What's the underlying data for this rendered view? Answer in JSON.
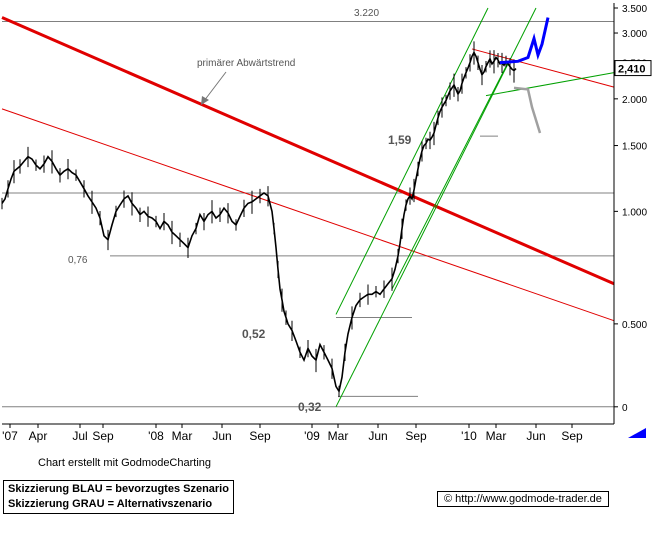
{
  "chart_data": {
    "type": "candlestick-line",
    "y_scale": "log",
    "ylim": [
      0.28,
      3.5
    ],
    "y_ticks": [
      {
        "label": "3.500",
        "value": 3.5
      },
      {
        "label": "3.000",
        "value": 3.0
      },
      {
        "label": "2.500",
        "value": 2.5
      },
      {
        "label": "2.000",
        "value": 2.0
      },
      {
        "label": "1.500",
        "value": 1.5
      },
      {
        "label": "1.000",
        "value": 1.0
      },
      {
        "label": "0.500",
        "value": 0.5
      },
      {
        "label": "0",
        "value": 0.3
      }
    ],
    "x_ticks": [
      "'07",
      "Apr",
      "Jul",
      "Sep",
      "'08",
      "Mar",
      "Jun",
      "Sep",
      "'09",
      "Mar",
      "Jun",
      "Sep",
      "'10",
      "Mar",
      "Jun",
      "Sep"
    ],
    "last_price_label": "2,410",
    "last_price": 2.41,
    "series": [
      {
        "points": [
          [
            0,
            1.05
          ],
          [
            3,
            1.08
          ],
          [
            6,
            1.15
          ],
          [
            9,
            1.22
          ],
          [
            12,
            1.28
          ],
          [
            15,
            1.3
          ],
          [
            18,
            1.32
          ],
          [
            22,
            1.36
          ],
          [
            26,
            1.4
          ],
          [
            30,
            1.38
          ],
          [
            34,
            1.33
          ],
          [
            38,
            1.3
          ],
          [
            42,
            1.34
          ],
          [
            46,
            1.4
          ],
          [
            50,
            1.36
          ],
          [
            54,
            1.3
          ],
          [
            58,
            1.25
          ],
          [
            62,
            1.28
          ],
          [
            66,
            1.3
          ],
          [
            70,
            1.27
          ],
          [
            74,
            1.25
          ],
          [
            78,
            1.2
          ],
          [
            82,
            1.15
          ],
          [
            86,
            1.1
          ],
          [
            90,
            1.06
          ],
          [
            94,
            1.02
          ],
          [
            98,
            0.96
          ],
          [
            102,
            0.86
          ],
          [
            106,
            0.84
          ],
          [
            110,
            0.92
          ],
          [
            114,
            1.0
          ],
          [
            118,
            1.04
          ],
          [
            122,
            1.08
          ],
          [
            126,
            1.1
          ],
          [
            130,
            1.05
          ],
          [
            134,
            1.02
          ],
          [
            138,
            0.98
          ],
          [
            142,
            1.0
          ],
          [
            146,
            0.97
          ],
          [
            150,
            0.96
          ],
          [
            154,
            0.94
          ],
          [
            158,
            0.9
          ],
          [
            162,
            0.94
          ],
          [
            166,
            0.92
          ],
          [
            170,
            0.88
          ],
          [
            174,
            0.86
          ],
          [
            178,
            0.84
          ],
          [
            182,
            0.82
          ],
          [
            186,
            0.8
          ],
          [
            190,
            0.86
          ],
          [
            194,
            0.9
          ],
          [
            198,
            0.98
          ],
          [
            202,
            0.94
          ],
          [
            206,
            0.98
          ],
          [
            210,
            1.0
          ],
          [
            214,
            0.96
          ],
          [
            218,
            0.98
          ],
          [
            222,
            1.02
          ],
          [
            226,
            0.99
          ],
          [
            230,
            0.94
          ],
          [
            234,
            0.92
          ],
          [
            238,
            0.97
          ],
          [
            242,
            1.02
          ],
          [
            246,
            1.05
          ],
          [
            250,
            1.06
          ],
          [
            254,
            1.08
          ],
          [
            258,
            1.1
          ],
          [
            262,
            1.12
          ],
          [
            266,
            1.1
          ],
          [
            270,
            1.0
          ],
          [
            272,
            0.9
          ],
          [
            274,
            0.8
          ],
          [
            276,
            0.7
          ],
          [
            278,
            0.62
          ],
          [
            280,
            0.58
          ],
          [
            282,
            0.54
          ],
          [
            284,
            0.52
          ],
          [
            286,
            0.5
          ],
          [
            290,
            0.48
          ],
          [
            294,
            0.45
          ],
          [
            298,
            0.42
          ],
          [
            302,
            0.4
          ],
          [
            306,
            0.43
          ],
          [
            310,
            0.41
          ],
          [
            314,
            0.4
          ],
          [
            318,
            0.44
          ],
          [
            322,
            0.42
          ],
          [
            326,
            0.4
          ],
          [
            330,
            0.38
          ],
          [
            334,
            0.34
          ],
          [
            337,
            0.33
          ],
          [
            340,
            0.36
          ],
          [
            343,
            0.42
          ],
          [
            346,
            0.47
          ],
          [
            350,
            0.52
          ],
          [
            354,
            0.56
          ],
          [
            358,
            0.58
          ],
          [
            362,
            0.59
          ],
          [
            366,
            0.6
          ],
          [
            370,
            0.6
          ],
          [
            374,
            0.61
          ],
          [
            378,
            0.6
          ],
          [
            382,
            0.62
          ],
          [
            386,
            0.64
          ],
          [
            390,
            0.66
          ],
          [
            393,
            0.7
          ],
          [
            396,
            0.76
          ],
          [
            398,
            0.82
          ],
          [
            400,
            0.9
          ],
          [
            402,
            0.98
          ],
          [
            404,
            1.04
          ],
          [
            406,
            1.08
          ],
          [
            408,
            1.1
          ],
          [
            410,
            1.08
          ],
          [
            412,
            1.14
          ],
          [
            414,
            1.22
          ],
          [
            416,
            1.3
          ],
          [
            418,
            1.38
          ],
          [
            420,
            1.45
          ],
          [
            422,
            1.5
          ],
          [
            424,
            1.52
          ],
          [
            426,
            1.56
          ],
          [
            428,
            1.55
          ],
          [
            430,
            1.58
          ],
          [
            432,
            1.62
          ],
          [
            434,
            1.7
          ],
          [
            436,
            1.78
          ],
          [
            438,
            1.85
          ],
          [
            440,
            1.9
          ],
          [
            442,
            1.94
          ],
          [
            444,
            1.98
          ],
          [
            446,
            2.04
          ],
          [
            448,
            2.1
          ],
          [
            450,
            2.14
          ],
          [
            452,
            2.18
          ],
          [
            454,
            2.12
          ],
          [
            456,
            2.06
          ],
          [
            458,
            2.1
          ],
          [
            460,
            2.2
          ],
          [
            462,
            2.28
          ],
          [
            464,
            2.35
          ],
          [
            466,
            2.42
          ],
          [
            468,
            2.5
          ],
          [
            470,
            2.6
          ],
          [
            472,
            2.66
          ],
          [
            474,
            2.6
          ],
          [
            476,
            2.5
          ],
          [
            478,
            2.4
          ],
          [
            480,
            2.32
          ],
          [
            482,
            2.36
          ],
          [
            484,
            2.44
          ],
          [
            486,
            2.5
          ],
          [
            488,
            2.56
          ],
          [
            490,
            2.48
          ],
          [
            492,
            2.52
          ],
          [
            494,
            2.58
          ],
          [
            496,
            2.54
          ],
          [
            498,
            2.48
          ],
          [
            500,
            2.5
          ],
          [
            502,
            2.46
          ],
          [
            504,
            2.52
          ],
          [
            506,
            2.48
          ],
          [
            508,
            2.44
          ],
          [
            510,
            2.4
          ],
          [
            512,
            2.38
          ],
          [
            514,
            2.41
          ]
        ],
        "color": "#000000"
      }
    ],
    "support_labels": [
      {
        "label": "0,76",
        "value": 0.76
      },
      {
        "label": "0,52",
        "value": 0.52
      },
      {
        "label": "0,32",
        "value": 0.32
      },
      {
        "label": "1,59",
        "value": 1.59
      },
      {
        "label": "3.220",
        "value": 3.22
      }
    ],
    "annotations": [
      {
        "text": "primärer Abwärtstrend"
      }
    ],
    "colors": {
      "price": "#000000",
      "main_trend": "#e00000",
      "channel": "#00a000",
      "blue_scenario": "#0000ff",
      "gray_scenario": "#a0a0a0",
      "support": "#808080",
      "grid": "#000000"
    },
    "credit": "Chart erstellt mit GodmodeCharting",
    "legend": [
      "Skizzierung BLAU = bevorzugtes Szenario",
      "Skizzierung GRAU = Alternativszenario"
    ],
    "source": "© http://www.godmode-trader.de"
  }
}
